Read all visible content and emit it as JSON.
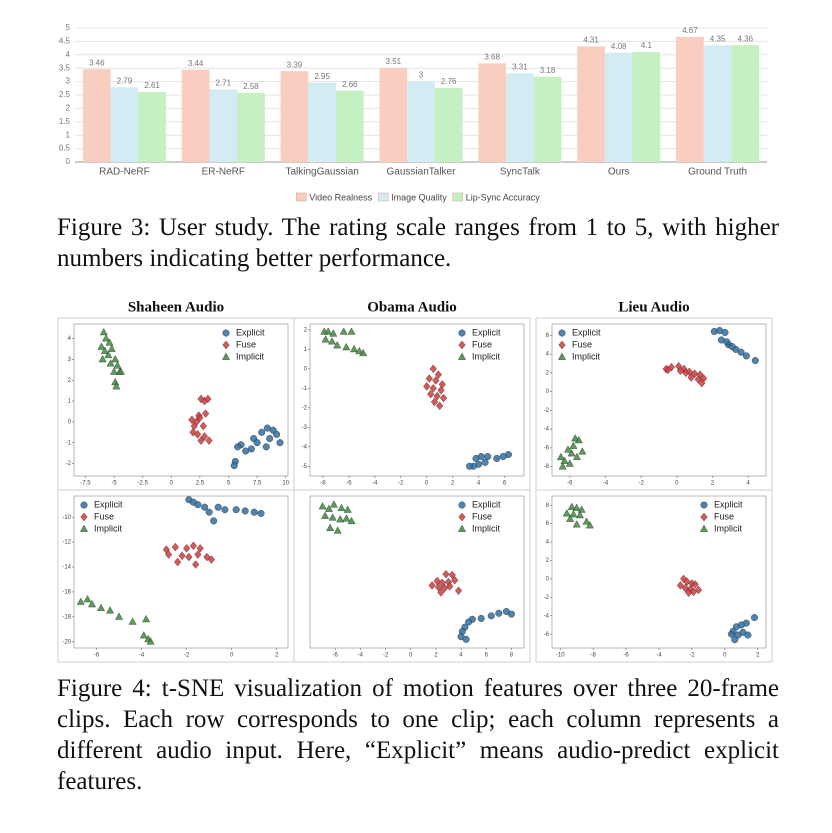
{
  "figure3_caption": "Figure 3: User study. The rating scale ranges from 1 to 5, with higher numbers indicating better performance.",
  "figure4_caption": "Figure 4: t-SNE visualization of motion features over three 20-frame clips. Each row corresponds to one clip; each column represents a different audio input. Here, “Explicit” means audio-predict explicit features.",
  "chart_data": [
    {
      "type": "bar",
      "categories": [
        "RAD-NeRF",
        "ER-NeRF",
        "TalkingGaussian",
        "GaussianTalker",
        "SyncTalk",
        "Ours",
        "Ground Truth"
      ],
      "series": [
        {
          "name": "Video Realness",
          "color": "#f9cdbf",
          "values": [
            3.46,
            3.44,
            3.39,
            3.51,
            3.68,
            4.31,
            4.67
          ]
        },
        {
          "name": "Image Quality",
          "color": "#d3ebf2",
          "values": [
            2.79,
            2.71,
            2.95,
            3,
            3.31,
            4.08,
            4.35
          ]
        },
        {
          "name": "Lip-Sync Accuracy",
          "color": "#c4f0c2",
          "values": [
            2.61,
            2.58,
            2.66,
            2.76,
            3.18,
            4.1,
            4.36
          ]
        }
      ],
      "ylim": [
        0,
        5
      ],
      "yticks": [
        0,
        0.5,
        1,
        1.5,
        2,
        2.5,
        3,
        3.5,
        4,
        4.5,
        5
      ],
      "grid": true,
      "legend": "bottom"
    },
    {
      "type": "scatter",
      "title": "Shaheen Audio",
      "xlim": [
        -8.5,
        10.2
      ],
      "ylim": [
        -2.6,
        4.7
      ],
      "xticks": [
        -7.5,
        -5,
        -2.5,
        0,
        2.5,
        5,
        7.5,
        10
      ],
      "yticks": [
        -2,
        -1,
        0,
        1,
        2,
        3,
        4
      ],
      "legend": "upper right",
      "series": [
        {
          "name": "Explicit",
          "color": "#2f6f9f",
          "marker": "circle",
          "x": [
            8.4,
            8.9,
            9.2,
            7.9,
            8.6,
            7.2,
            6.1,
            7.5,
            8.3,
            9.5,
            5.8,
            6.5,
            7.0,
            5.6,
            5.5
          ],
          "values": [
            -0.3,
            -0.4,
            -0.6,
            -0.5,
            -0.8,
            -0.8,
            -1.1,
            -1.0,
            -1.2,
            -1.0,
            -1.2,
            -1.4,
            -1.3,
            -1.9,
            -2.1
          ]
        },
        {
          "name": "Fuse",
          "color": "#d13a3c",
          "marker": "diamond",
          "x": [
            2.6,
            2.9,
            3.2,
            2.4,
            3.0,
            1.8,
            2.2,
            2.5,
            2.0,
            2.8,
            1.9,
            2.3,
            2.9,
            3.3,
            2.6
          ],
          "values": [
            1.1,
            1.0,
            1.1,
            0.3,
            0.4,
            0.1,
            0.0,
            0.2,
            -0.2,
            -0.2,
            -0.5,
            -0.6,
            -0.7,
            -0.9,
            -0.9
          ]
        },
        {
          "name": "Implicit",
          "color": "#3c8c3c",
          "marker": "triangle",
          "x": [
            -5.9,
            -5.7,
            -5.4,
            -6.1,
            -5.8,
            -5.2,
            -5.5,
            -6.0,
            -4.9,
            -5.3,
            -4.7,
            -5.0,
            -4.5,
            -4.4,
            -4.9,
            -4.8
          ],
          "values": [
            4.3,
            4.0,
            3.8,
            3.6,
            3.4,
            3.5,
            3.2,
            3.0,
            3.0,
            2.8,
            2.7,
            2.4,
            2.4,
            2.4,
            1.9,
            1.7
          ]
        }
      ]
    },
    {
      "type": "scatter",
      "title": "Obama Audio",
      "xlim": [
        -9,
        7.5
      ],
      "ylim": [
        -5.5,
        2.3
      ],
      "xticks": [
        -8,
        -6,
        -4,
        -2,
        0,
        2,
        4,
        6
      ],
      "yticks": [
        -5,
        -4,
        -3,
        -2,
        -1,
        0,
        1,
        2
      ],
      "legend": "upper right",
      "series": [
        {
          "name": "Explicit",
          "color": "#2f6f9f",
          "marker": "circle",
          "x": [
            6.3,
            5.9,
            5.4,
            4.7,
            4.2,
            3.8,
            4.0,
            3.6,
            3.3,
            4.5
          ],
          "values": [
            -4.4,
            -4.5,
            -4.6,
            -4.5,
            -4.5,
            -4.6,
            -4.9,
            -5.0,
            -5.0,
            -4.8
          ]
        },
        {
          "name": "Fuse",
          "color": "#d13a3c",
          "marker": "diamond",
          "x": [
            0.5,
            0.9,
            0.2,
            0.7,
            1.2,
            0.0,
            0.5,
            1.1,
            0.3,
            0.8,
            1.3,
            0.6,
            1.0
          ],
          "values": [
            0.0,
            -0.3,
            -0.5,
            -0.6,
            -0.8,
            -0.9,
            -1.0,
            -1.1,
            -1.3,
            -1.4,
            -1.5,
            -1.7,
            -1.9
          ]
        },
        {
          "name": "Implicit",
          "color": "#3c8c3c",
          "marker": "triangle",
          "x": [
            -7.9,
            -7.6,
            -7.2,
            -6.4,
            -5.8,
            -7.8,
            -7.3,
            -6.9,
            -6.2,
            -5.6,
            -5.2,
            -4.9
          ],
          "values": [
            1.9,
            1.9,
            1.8,
            1.9,
            1.9,
            1.5,
            1.4,
            1.2,
            1.1,
            1.0,
            0.9,
            0.8
          ]
        }
      ]
    },
    {
      "type": "scatter",
      "title": "Lieu Audio",
      "xlim": [
        -7,
        5
      ],
      "ylim": [
        -9,
        7.2
      ],
      "xticks": [
        -6,
        -4,
        -2,
        0,
        2,
        4
      ],
      "yticks": [
        -8,
        -6,
        -4,
        -2,
        0,
        2,
        4,
        6
      ],
      "legend": "upper left",
      "series": [
        {
          "name": "Explicit",
          "color": "#2f6f9f",
          "marker": "circle",
          "x": [
            2.1,
            2.4,
            2.7,
            2.5,
            2.9,
            3.3,
            3.6,
            3.9,
            4.4,
            3.1,
            2.8
          ],
          "values": [
            6.4,
            6.5,
            6.3,
            5.5,
            5.0,
            4.5,
            4.2,
            3.8,
            3.3,
            4.8,
            5.3
          ]
        },
        {
          "name": "Fuse",
          "color": "#d13a3c",
          "marker": "diamond",
          "x": [
            -0.6,
            -0.3,
            0.1,
            0.4,
            0.7,
            1.0,
            1.3,
            0.2,
            0.8,
            1.2,
            1.5,
            1.4,
            -0.5,
            0.5
          ],
          "values": [
            2.4,
            2.6,
            2.7,
            2.4,
            2.1,
            1.9,
            1.8,
            2.2,
            1.5,
            1.3,
            1.4,
            0.9,
            2.3,
            2.0
          ]
        },
        {
          "name": "Implicit",
          "color": "#3c8c3c",
          "marker": "triangle",
          "x": [
            -5.7,
            -5.5,
            -5.8,
            -6.1,
            -5.3,
            -5.9,
            -6.5,
            -6.3,
            -6.0,
            -5.6,
            -6.4
          ],
          "values": [
            -5.0,
            -5.2,
            -5.8,
            -6.2,
            -6.4,
            -6.6,
            -7.0,
            -7.4,
            -7.7,
            -7.0,
            -8.0
          ]
        }
      ]
    },
    {
      "type": "scatter",
      "xlim": [
        -7,
        2.5
      ],
      "ylim": [
        -20.5,
        -8.3
      ],
      "xticks": [
        -6,
        -4,
        -2,
        0,
        2
      ],
      "yticks": [
        -20,
        -18,
        -16,
        -14,
        -12,
        -10
      ],
      "legend": "upper left",
      "series": [
        {
          "name": "Explicit",
          "color": "#2f6f9f",
          "marker": "circle",
          "x": [
            -1.9,
            -1.7,
            -1.2,
            -1.0,
            -0.6,
            -0.3,
            0.2,
            0.6,
            1.0,
            1.3,
            -0.8,
            -1.5
          ],
          "values": [
            -8.6,
            -8.8,
            -9.2,
            -9.6,
            -9.2,
            -9.4,
            -9.4,
            -9.5,
            -9.6,
            -9.7,
            -10.3,
            -9.0
          ]
        },
        {
          "name": "Fuse",
          "color": "#d13a3c",
          "marker": "diamond",
          "x": [
            -2.9,
            -2.5,
            -2.0,
            -1.7,
            -1.4,
            -2.8,
            -2.2,
            -1.9,
            -1.5,
            -1.1,
            -0.9,
            -2.4,
            -1.6
          ],
          "values": [
            -12.6,
            -12.4,
            -12.5,
            -12.3,
            -12.5,
            -13.0,
            -13.1,
            -13.2,
            -13.0,
            -13.2,
            -13.4,
            -13.6,
            -13.8
          ]
        },
        {
          "name": "Implicit",
          "color": "#3c8c3c",
          "marker": "triangle",
          "x": [
            -6.7,
            -6.4,
            -6.2,
            -5.8,
            -5.4,
            -5.0,
            -4.4,
            -3.8,
            -3.9,
            -3.7,
            -3.6
          ],
          "values": [
            -16.8,
            -16.6,
            -17.0,
            -17.3,
            -17.5,
            -18.0,
            -18.4,
            -18.2,
            -19.5,
            -19.8,
            -20.0
          ]
        }
      ]
    },
    {
      "type": "scatter",
      "xlim": [
        -8,
        9
      ],
      "ylim": [
        -10,
        7.5
      ],
      "xticks": [
        -6,
        -4,
        -2,
        0,
        2,
        4,
        6,
        8
      ],
      "legend": "upper right",
      "series": [
        {
          "name": "Explicit",
          "color": "#2f6f9f",
          "marker": "circle",
          "x": [
            7.6,
            8.0,
            7.0,
            6.4,
            5.6,
            4.9,
            4.6,
            4.3,
            4.1,
            4.0,
            4.4
          ],
          "values": [
            -5.8,
            -6.1,
            -6.0,
            -6.3,
            -6.6,
            -6.7,
            -7.0,
            -7.6,
            -8.1,
            -8.7,
            -9.0
          ]
        },
        {
          "name": "Fuse",
          "color": "#d13a3c",
          "marker": "diamond",
          "x": [
            2.8,
            3.3,
            2.1,
            2.5,
            3.0,
            3.5,
            1.7,
            2.2,
            2.7,
            3.1,
            3.8,
            2.4
          ],
          "values": [
            -1.5,
            -1.6,
            -2.3,
            -2.5,
            -2.4,
            -2.2,
            -2.8,
            -3.0,
            -3.1,
            -2.9,
            -3.4,
            -3.6
          ]
        },
        {
          "name": "Implicit",
          "color": "#3c8c3c",
          "marker": "triangle",
          "x": [
            -7.0,
            -6.5,
            -6.1,
            -5.5,
            -5.0,
            -6.8,
            -6.2,
            -5.6,
            -5.1,
            -4.7,
            -6.4,
            -5.8
          ],
          "values": [
            6.3,
            6.0,
            6.5,
            6.1,
            5.9,
            5.2,
            5.0,
            4.8,
            4.9,
            4.6,
            3.8,
            3.5
          ]
        }
      ]
    },
    {
      "type": "scatter",
      "xlim": [
        -10.5,
        2.5
      ],
      "ylim": [
        -7.5,
        9
      ],
      "xticks": [
        -10,
        -8,
        -6,
        -4,
        -2,
        0,
        2
      ],
      "yticks": [
        -6,
        -4,
        -2,
        0,
        2,
        4,
        6,
        8
      ],
      "legend": "upper right",
      "series": [
        {
          "name": "Explicit",
          "color": "#2f6f9f",
          "marker": "circle",
          "x": [
            1.8,
            1.3,
            1.0,
            0.7,
            0.5,
            1.1,
            0.8,
            0.4,
            1.4,
            0.6
          ],
          "values": [
            -4.2,
            -4.8,
            -5.0,
            -5.2,
            -5.7,
            -5.8,
            -6.1,
            -6.0,
            -6.1,
            -6.6
          ]
        },
        {
          "name": "Fuse",
          "color": "#d13a3c",
          "marker": "diamond",
          "x": [
            -2.5,
            -2.3,
            -2.0,
            -1.8,
            -2.7,
            -2.4,
            -2.1,
            -1.6,
            -1.9,
            -2.2
          ],
          "values": [
            0.0,
            -0.3,
            -0.5,
            -0.6,
            -0.7,
            -1.0,
            -1.1,
            -1.2,
            -1.4,
            -1.5
          ]
        },
        {
          "name": "Implicit",
          "color": "#3c8c3c",
          "marker": "triangle",
          "x": [
            -9.3,
            -9.0,
            -8.7,
            -9.6,
            -9.2,
            -8.8,
            -9.4,
            -8.4,
            -8.2,
            -9.0
          ],
          "values": [
            7.8,
            7.7,
            7.5,
            7.1,
            7.0,
            6.9,
            6.5,
            6.2,
            5.8,
            5.9
          ]
        }
      ]
    }
  ]
}
